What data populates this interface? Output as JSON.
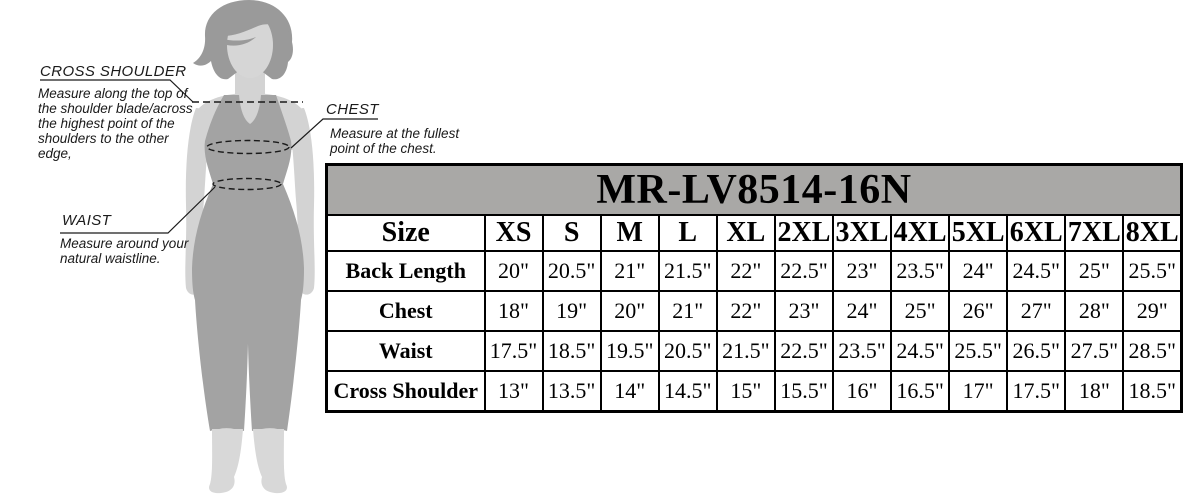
{
  "page": {
    "background": "#ffffff"
  },
  "figure": {
    "annotations": [
      {
        "id": "cross-shoulder",
        "label": "CROSS SHOULDER",
        "description": "Measure along the top of\nthe shoulder blade/across\nthe highest point of the\nshoulders to the other\nedge,"
      },
      {
        "id": "chest",
        "label": "CHEST",
        "description": "Measure at the fullest\npoint of the chest."
      },
      {
        "id": "waist",
        "label": "WAIST",
        "description": "Measure around your\nnatural waistline."
      }
    ],
    "colors": {
      "skin": "#d3d3d3",
      "face": "#d6d6d6",
      "hair": "#9a9a9a",
      "clothing": "#a3a3a3",
      "lower_legs": "#d8d8d8",
      "line": "#1a1a1a"
    }
  },
  "table": {
    "title": "MR-LV8514-16N",
    "title_bg": "#a9a8a6",
    "border_color": "#000000",
    "header": [
      "Size",
      "XS",
      "S",
      "M",
      "L",
      "XL",
      "2XL",
      "3XL",
      "4XL",
      "5XL",
      "6XL",
      "7XL",
      "8XL"
    ],
    "rows": [
      {
        "label": "Back Length",
        "values": [
          "20\"",
          "20.5\"",
          "21\"",
          "21.5\"",
          "22\"",
          "22.5\"",
          "23\"",
          "23.5\"",
          "24\"",
          "24.5\"",
          "25\"",
          "25.5\""
        ]
      },
      {
        "label": "Chest",
        "values": [
          "18\"",
          "19\"",
          "20\"",
          "21\"",
          "22\"",
          "23\"",
          "24\"",
          "25\"",
          "26\"",
          "27\"",
          "28\"",
          "29\""
        ]
      },
      {
        "label": "Waist",
        "values": [
          "17.5\"",
          "18.5\"",
          "19.5\"",
          "20.5\"",
          "21.5\"",
          "22.5\"",
          "23.5\"",
          "24.5\"",
          "25.5\"",
          "26.5\"",
          "27.5\"",
          "28.5\""
        ]
      },
      {
        "label": "Cross Shoulder",
        "values": [
          "13\"",
          "13.5\"",
          "14\"",
          "14.5\"",
          "15\"",
          "15.5\"",
          "16\"",
          "16.5\"",
          "17\"",
          "17.5\"",
          "18\"",
          "18.5\""
        ]
      }
    ]
  }
}
